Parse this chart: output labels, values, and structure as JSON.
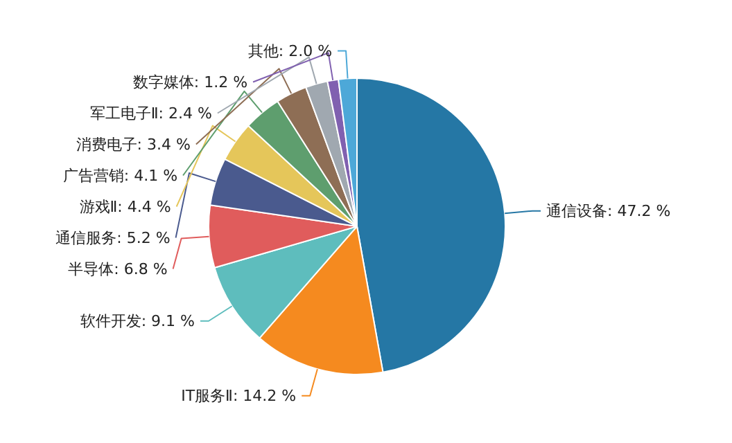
{
  "chart_data": {
    "type": "pie",
    "categories": [
      "通信设备",
      "IT服务Ⅱ",
      "软件开发",
      "半导体",
      "通信服务",
      "游戏Ⅱ",
      "广告营销",
      "消费电子",
      "军工电子Ⅱ",
      "数字媒体",
      "其他"
    ],
    "values": [
      47.2,
      14.2,
      9.1,
      6.8,
      5.2,
      4.4,
      4.1,
      3.4,
      2.4,
      1.2,
      2.0
    ],
    "colors": [
      "#2577a5",
      "#f58a1f",
      "#5ebdbd",
      "#e05c5c",
      "#4a5a8e",
      "#e5c65a",
      "#5e9e6e",
      "#8e6e55",
      "#a0a8b0",
      "#8060b0",
      "#4da8d8"
    ],
    "value_labels": [
      "47.2 %",
      "14.2 %",
      "9.1 %",
      "6.8 %",
      "5.2 %",
      "4.4 %",
      "4.1 %",
      "3.4 %",
      "2.4 %",
      "1.2 %",
      "2.0 %"
    ]
  }
}
